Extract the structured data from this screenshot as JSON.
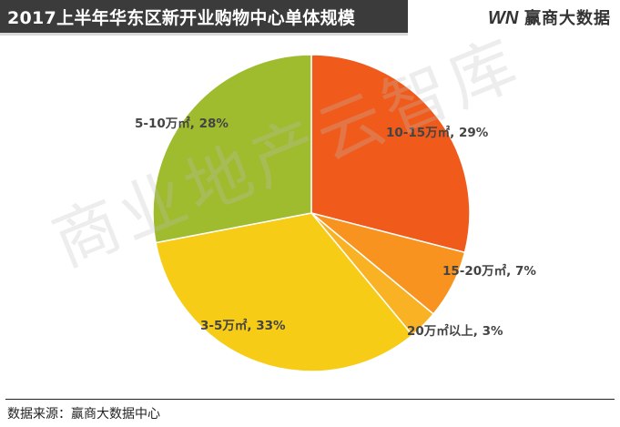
{
  "header": {
    "title": "2017上半年华东区新开业购物中心单体规模",
    "brand_logo_text": "WN",
    "brand_name": "赢商大数据"
  },
  "watermark": "商业地产云智库",
  "source": "数据来源：赢商大数据中心",
  "chart_data": {
    "type": "pie",
    "title": "2017上半年华东区新开业购物中心单体规模",
    "categories": [
      "10-15万㎡",
      "15-20万㎡",
      "20万㎡以上",
      "3-5万㎡",
      "5-10万㎡"
    ],
    "values": [
      29,
      7,
      3,
      33,
      28
    ],
    "labels": [
      "10-15万㎡, 29%",
      "15-20万㎡, 7%",
      "20万㎡以上, 3%",
      "3-5万㎡, 33%",
      "5-10万㎡, 28%"
    ],
    "colors": [
      "#f05a1a",
      "#f7931e",
      "#f8b224",
      "#f7cc17",
      "#9fbc2e"
    ],
    "start_angle_deg": 0,
    "direction": "clockwise"
  }
}
